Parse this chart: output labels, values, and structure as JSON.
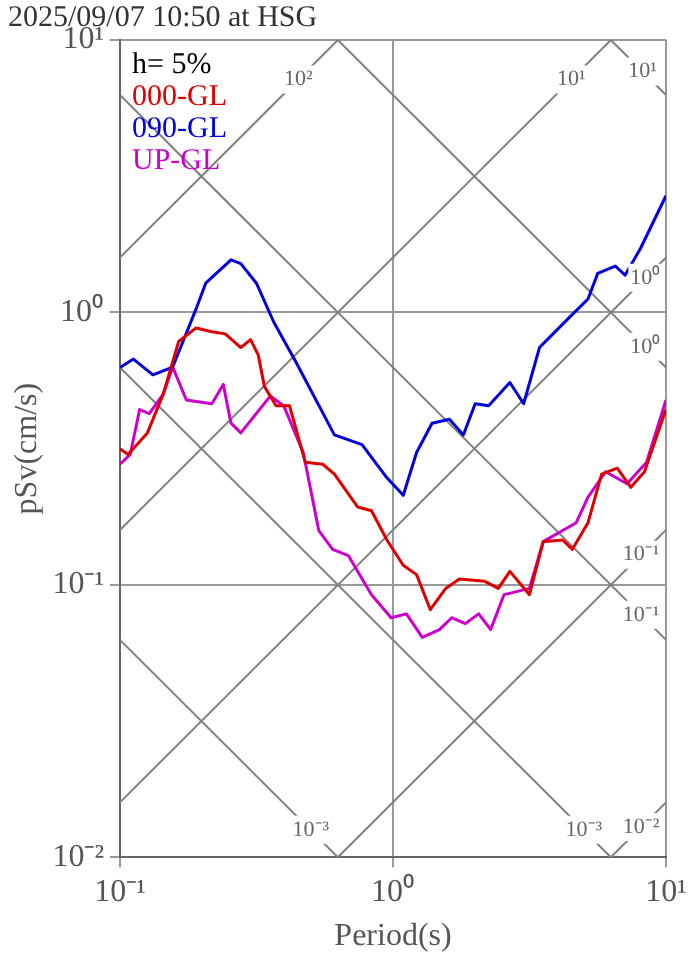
{
  "chart_data": {
    "type": "line",
    "title": "2025/09/07 10:50 at HSG",
    "xlabel": "Period(s)",
    "ylabel": "pSv(cm/s)",
    "log": "xy",
    "grid": true,
    "legend": "top left",
    "xlim": [
      0.1,
      10
    ],
    "xticks": [
      {
        "value": 0.1,
        "label": "10⁻¹"
      },
      {
        "value": 1,
        "label": "10⁰"
      },
      {
        "value": 10,
        "label": "10¹"
      }
    ],
    "ylim": [
      0.01,
      10
    ],
    "yticks": [
      {
        "value": 0.01,
        "label": "10⁻²"
      },
      {
        "value": 0.1,
        "label": "10⁻¹"
      },
      {
        "value": 1,
        "label": "10⁰"
      },
      {
        "value": 10,
        "label": "10¹"
      }
    ],
    "annotations": [
      "h= 5%",
      {
        "text": "10²",
        "x": 0.45,
        "y": 7.16
      },
      {
        "text": "10¹",
        "x": 4.5,
        "y": 7.16
      },
      {
        "text": "10¹",
        "x": 8.2,
        "y": 7.66
      },
      {
        "text": "10⁰",
        "x": 8.4,
        "y": 1.34
      },
      {
        "text": "10⁰",
        "x": 8.4,
        "y": 0.748
      },
      {
        "text": "10⁻¹",
        "x": 8.1,
        "y": 0.129
      },
      {
        "text": "10⁻¹",
        "x": 8.1,
        "y": 0.0776
      },
      {
        "text": "10⁻³",
        "x": 0.5,
        "y": 0.0126
      },
      {
        "text": "10⁻³",
        "x": 5.0,
        "y": 0.0126
      },
      {
        "text": "10⁻²",
        "x": 8.1,
        "y": 0.0129
      }
    ],
    "series": [
      {
        "name": "000-GL",
        "color": "#dd0000",
        "x": [
          0.1,
          0.107,
          0.126,
          0.144,
          0.164,
          0.19,
          0.217,
          0.243,
          0.277,
          0.301,
          0.321,
          0.338,
          0.373,
          0.418,
          0.477,
          0.553,
          0.61,
          0.743,
          0.834,
          0.95,
          1.09,
          1.22,
          1.37,
          1.56,
          1.75,
          2.17,
          2.43,
          2.68,
          3.16,
          3.55,
          4.18,
          4.54,
          5.18,
          5.81,
          6.63,
          7.43,
          8.34,
          10
        ],
        "values": [
          0.316,
          0.301,
          0.361,
          0.501,
          0.782,
          0.877,
          0.849,
          0.834,
          0.743,
          0.794,
          0.697,
          0.535,
          0.454,
          0.454,
          0.282,
          0.277,
          0.255,
          0.193,
          0.187,
          0.146,
          0.118,
          0.109,
          0.081,
          0.097,
          0.105,
          0.103,
          0.097,
          0.112,
          0.092,
          0.144,
          0.146,
          0.135,
          0.169,
          0.255,
          0.268,
          0.228,
          0.26,
          0.44
        ]
      },
      {
        "name": "090-GL",
        "color": "#0000dd",
        "x": [
          0.1,
          0.112,
          0.132,
          0.156,
          0.19,
          0.206,
          0.255,
          0.277,
          0.316,
          0.366,
          0.44,
          0.61,
          0.77,
          0.95,
          1.09,
          1.22,
          1.39,
          1.61,
          1.81,
          2.0,
          2.24,
          2.68,
          3.01,
          3.44,
          4.4,
          5.18,
          5.62,
          6.52,
          7.08,
          8.07,
          10
        ],
        "values": [
          0.628,
          0.674,
          0.59,
          0.63,
          1.03,
          1.28,
          1.56,
          1.51,
          1.28,
          0.92,
          0.66,
          0.355,
          0.327,
          0.247,
          0.213,
          0.306,
          0.392,
          0.405,
          0.355,
          0.462,
          0.454,
          0.553,
          0.462,
          0.743,
          0.953,
          1.12,
          1.39,
          1.48,
          1.37,
          1.72,
          2.68
        ]
      },
      {
        "name": "UP-GL",
        "color": "#cc00cc",
        "x": [
          0.1,
          0.109,
          0.118,
          0.128,
          0.144,
          0.156,
          0.175,
          0.217,
          0.239,
          0.255,
          0.277,
          0.355,
          0.398,
          0.469,
          0.535,
          0.601,
          0.686,
          0.834,
          0.984,
          1.12,
          1.28,
          1.48,
          1.64,
          1.84,
          2.06,
          2.28,
          2.55,
          3.16,
          3.55,
          4.69,
          5.18,
          6.01,
          7.2,
          8.49,
          10
        ],
        "values": [
          0.277,
          0.301,
          0.44,
          0.425,
          0.501,
          0.63,
          0.477,
          0.462,
          0.544,
          0.392,
          0.361,
          0.493,
          0.454,
          0.306,
          0.158,
          0.135,
          0.128,
          0.092,
          0.0757,
          0.0782,
          0.0641,
          0.0685,
          0.0757,
          0.072,
          0.0782,
          0.0685,
          0.092,
          0.097,
          0.144,
          0.169,
          0.21,
          0.26,
          0.235,
          0.282,
          0.477
        ]
      },
      {
        "color": "#808080",
        "x": [
          0.1,
          0.628
        ],
        "values": [
          1.59,
          10
        ]
      },
      {
        "color": "#808080",
        "x": [
          0.1,
          6.28
        ],
        "values": [
          0.159,
          10
        ]
      },
      {
        "color": "#808080",
        "x": [
          0.1,
          10
        ],
        "values": [
          0.0159,
          1.59
        ]
      },
      {
        "color": "#808080",
        "x": [
          0.628,
          10
        ],
        "values": [
          0.01,
          0.159
        ]
      },
      {
        "color": "#808080",
        "x": [
          6.28,
          10
        ],
        "values": [
          0.01,
          0.0159
        ]
      },
      {
        "color": "#808080",
        "x": [
          6.28,
          10
        ],
        "values": [
          10,
          6.28
        ]
      },
      {
        "color": "#808080",
        "x": [
          0.628,
          10
        ],
        "values": [
          10,
          0.628
        ]
      },
      {
        "color": "#808080",
        "x": [
          0.1,
          10
        ],
        "values": [
          6.28,
          0.0628
        ]
      },
      {
        "color": "#808080",
        "x": [
          0.1,
          6.28
        ],
        "values": [
          0.628,
          0.01
        ]
      },
      {
        "color": "#808080",
        "x": [
          0.1,
          0.628
        ],
        "values": [
          0.0628,
          0.01
        ]
      }
    ]
  }
}
